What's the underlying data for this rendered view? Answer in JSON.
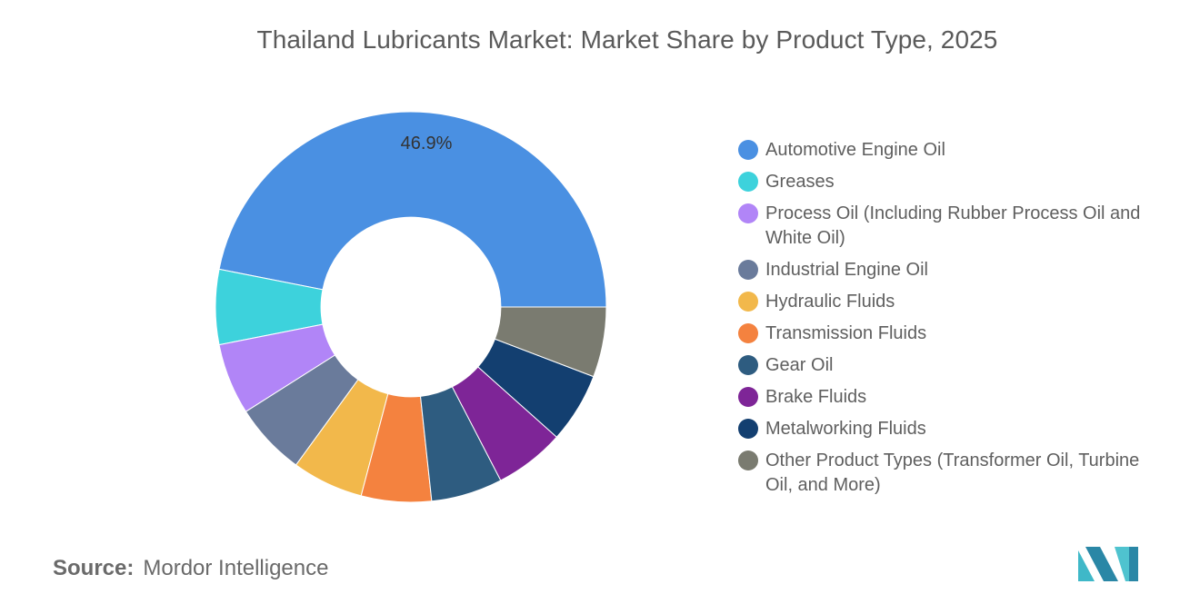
{
  "chart_data": {
    "type": "pie",
    "title": "Thailand Lubricants Market: Market Share by Product Type, 2025",
    "categories": [
      "Automotive Engine Oil",
      "Greases",
      "Process Oil (Including Rubber Process Oil and White Oil)",
      "Industrial Engine Oil",
      "Hydraulic Fluids",
      "Transmission Fluids",
      "Gear Oil",
      "Brake Fluids",
      "Metalworking Fluids",
      "Other Product Types (Transformer Oil, Turbine Oil, and More)"
    ],
    "values": [
      46.9,
      6.2,
      5.9,
      6.0,
      5.9,
      5.8,
      5.9,
      5.8,
      5.8,
      5.8
    ],
    "data_labels": [
      "46.9%",
      "",
      "",
      "",
      "",
      "",
      "",
      "",
      "",
      ""
    ],
    "colors": [
      "#4A90E2",
      "#3DD2DC",
      "#B185F7",
      "#6A7B9B",
      "#F2B84B",
      "#F4823F",
      "#2E5C80",
      "#7E2597",
      "#133F70",
      "#7A7B70"
    ],
    "legend_position": "right",
    "inner_radius_ratio": 0.46
  },
  "source": {
    "label": "Source:",
    "value": "Mordor Intelligence"
  },
  "logo": {
    "name": "mordor-intelligence-logo",
    "colors": [
      "#4DB6C8",
      "#2A8AA8"
    ]
  }
}
